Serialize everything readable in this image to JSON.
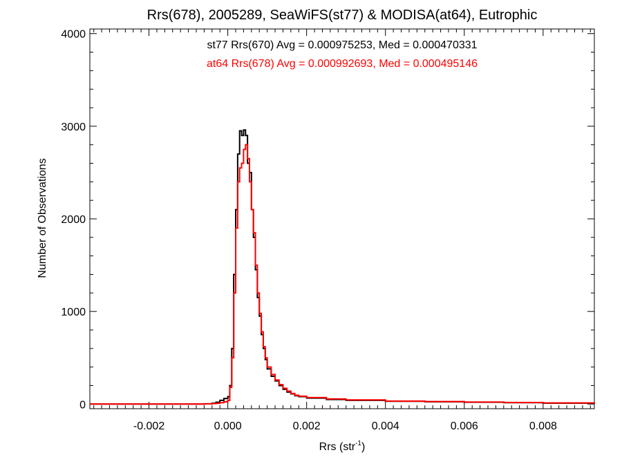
{
  "chart_data": {
    "type": "line",
    "title": "Rrs(678), 2005289, SeaWiFS(st77) & MODISA(at64), Eutrophic",
    "xlabel": "Rrs (str",
    "xlabel_sup": "-1",
    "xlabel_close": ")",
    "ylabel": "Number of Observations",
    "xlim": [
      -0.0035,
      0.0093
    ],
    "ylim": [
      -50,
      4050
    ],
    "x_ticks": [
      -0.002,
      0.0,
      0.002,
      0.004,
      0.006,
      0.008
    ],
    "x_tick_labels": [
      "-0.002",
      "0.000",
      "0.002",
      "0.004",
      "0.006",
      "0.008"
    ],
    "y_ticks": [
      0,
      1000,
      2000,
      3000,
      4000
    ],
    "y_tick_labels": [
      "0",
      "1000",
      "2000",
      "3000",
      "4000"
    ],
    "grid": false,
    "annotations": [
      {
        "text": "st77 Rrs(670) Avg = 0.000975253, Med = 0.000470331",
        "color": "#000000"
      },
      {
        "text": "at64 Rrs(678) Avg = 0.000992693, Med = 0.000495146",
        "color": "#ff0000"
      }
    ],
    "series": [
      {
        "color": "#000000",
        "step": true,
        "points": [
          [
            -0.0035,
            0
          ],
          [
            -0.0008,
            0
          ],
          [
            -0.0006,
            3
          ],
          [
            -0.0004,
            10
          ],
          [
            -0.0003,
            20
          ],
          [
            -0.0002,
            40
          ],
          [
            -0.0001,
            60
          ],
          [
            0.0,
            80
          ],
          [
            5e-05,
            200
          ],
          [
            0.0001,
            600
          ],
          [
            0.00015,
            1400
          ],
          [
            0.0002,
            2100
          ],
          [
            0.00025,
            2700
          ],
          [
            0.0003,
            2950
          ],
          [
            0.00035,
            2900
          ],
          [
            0.0004,
            2960
          ],
          [
            0.00045,
            2900
          ],
          [
            0.0005,
            2600
          ],
          [
            0.00055,
            2500
          ],
          [
            0.0006,
            2100
          ],
          [
            0.00065,
            1800
          ],
          [
            0.0007,
            1450
          ],
          [
            0.00075,
            1150
          ],
          [
            0.0008,
            950
          ],
          [
            0.00085,
            750
          ],
          [
            0.0009,
            600
          ],
          [
            0.00095,
            480
          ],
          [
            0.001,
            380
          ],
          [
            0.0011,
            300
          ],
          [
            0.0012,
            250
          ],
          [
            0.0013,
            200
          ],
          [
            0.0014,
            160
          ],
          [
            0.0015,
            130
          ],
          [
            0.0016,
            110
          ],
          [
            0.0017,
            90
          ],
          [
            0.0018,
            80
          ],
          [
            0.002,
            65
          ],
          [
            0.0025,
            50
          ],
          [
            0.003,
            40
          ],
          [
            0.004,
            30
          ],
          [
            0.005,
            25
          ],
          [
            0.006,
            20
          ],
          [
            0.007,
            15
          ],
          [
            0.008,
            10
          ],
          [
            0.0093,
            8
          ]
        ]
      },
      {
        "color": "#ff0000",
        "step": true,
        "points": [
          [
            -0.0035,
            0
          ],
          [
            -0.0008,
            0
          ],
          [
            -0.0006,
            2
          ],
          [
            -0.0004,
            5
          ],
          [
            -0.0003,
            8
          ],
          [
            -0.0002,
            15
          ],
          [
            -0.0001,
            25
          ],
          [
            0.0,
            40
          ],
          [
            5e-05,
            180
          ],
          [
            0.0001,
            500
          ],
          [
            0.00015,
            1200
          ],
          [
            0.0002,
            1900
          ],
          [
            0.00025,
            2400
          ],
          [
            0.0003,
            2550
          ],
          [
            0.00035,
            2600
          ],
          [
            0.0004,
            2750
          ],
          [
            0.00045,
            2800
          ],
          [
            0.0005,
            2650
          ],
          [
            0.00055,
            2400
          ],
          [
            0.0006,
            2100
          ],
          [
            0.00065,
            1850
          ],
          [
            0.0007,
            1500
          ],
          [
            0.00075,
            1200
          ],
          [
            0.0008,
            980
          ],
          [
            0.00085,
            780
          ],
          [
            0.0009,
            620
          ],
          [
            0.00095,
            500
          ],
          [
            0.001,
            400
          ],
          [
            0.0011,
            320
          ],
          [
            0.0012,
            260
          ],
          [
            0.0013,
            210
          ],
          [
            0.0014,
            170
          ],
          [
            0.0015,
            140
          ],
          [
            0.0016,
            115
          ],
          [
            0.0017,
            95
          ],
          [
            0.0018,
            85
          ],
          [
            0.002,
            70
          ],
          [
            0.0025,
            55
          ],
          [
            0.003,
            45
          ],
          [
            0.004,
            32
          ],
          [
            0.005,
            27
          ],
          [
            0.006,
            22
          ],
          [
            0.007,
            17
          ],
          [
            0.008,
            12
          ],
          [
            0.0093,
            9
          ]
        ]
      }
    ]
  }
}
